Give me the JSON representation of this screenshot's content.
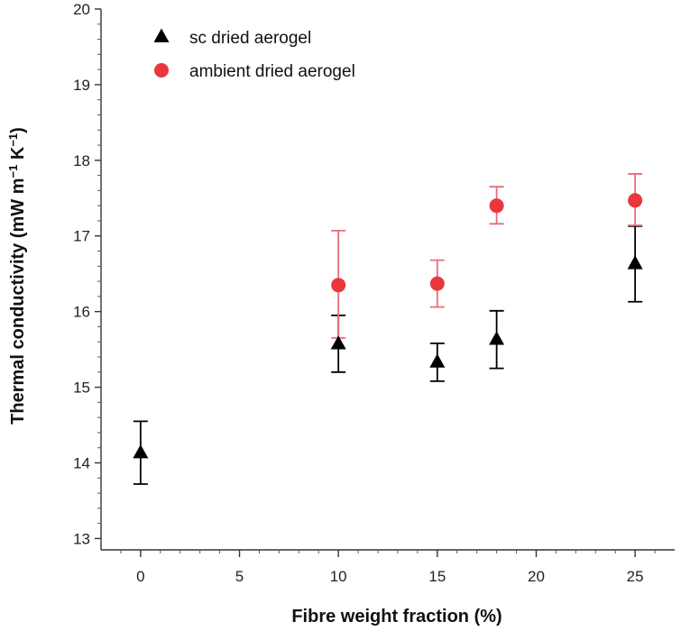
{
  "chart_data": {
    "type": "scatter",
    "title": "",
    "xlabel": "Fibre weight fraction (%)",
    "ylabel_main": "Thermal conductivity (mW m",
    "ylabel_sup1": "−1",
    "ylabel_mid": " K",
    "ylabel_sup2": "−1",
    "ylabel_end": ")",
    "xlim": [
      -2,
      27
    ],
    "ylim": [
      12.85,
      20
    ],
    "xticks": [
      0,
      5,
      10,
      15,
      20,
      25
    ],
    "yticks": [
      13,
      14,
      15,
      16,
      17,
      18,
      19,
      20
    ],
    "grid": false,
    "legend_position": "top-left",
    "series": [
      {
        "name": "sc dried aerogel",
        "marker": "triangle",
        "color": "#000000",
        "errorbar_color": "#000000",
        "points": [
          {
            "x": 0,
            "y": 14.13,
            "lo": 13.72,
            "hi": 14.55
          },
          {
            "x": 10,
            "y": 15.57,
            "lo": 15.2,
            "hi": 15.95
          },
          {
            "x": 15,
            "y": 15.33,
            "lo": 15.08,
            "hi": 15.58
          },
          {
            "x": 18,
            "y": 15.63,
            "lo": 15.25,
            "hi": 16.01
          },
          {
            "x": 25,
            "y": 16.63,
            "lo": 16.13,
            "hi": 17.13
          }
        ]
      },
      {
        "name": "ambient dried aerogel",
        "marker": "circle",
        "color": "#e8383b",
        "errorbar_color": "#e86b7c",
        "points": [
          {
            "x": 10,
            "y": 16.35,
            "lo": 15.65,
            "hi": 17.07
          },
          {
            "x": 15,
            "y": 16.37,
            "lo": 16.06,
            "hi": 16.68
          },
          {
            "x": 18,
            "y": 17.4,
            "lo": 17.16,
            "hi": 17.65
          },
          {
            "x": 25,
            "y": 17.47,
            "lo": 17.14,
            "hi": 17.82
          }
        ]
      }
    ]
  }
}
